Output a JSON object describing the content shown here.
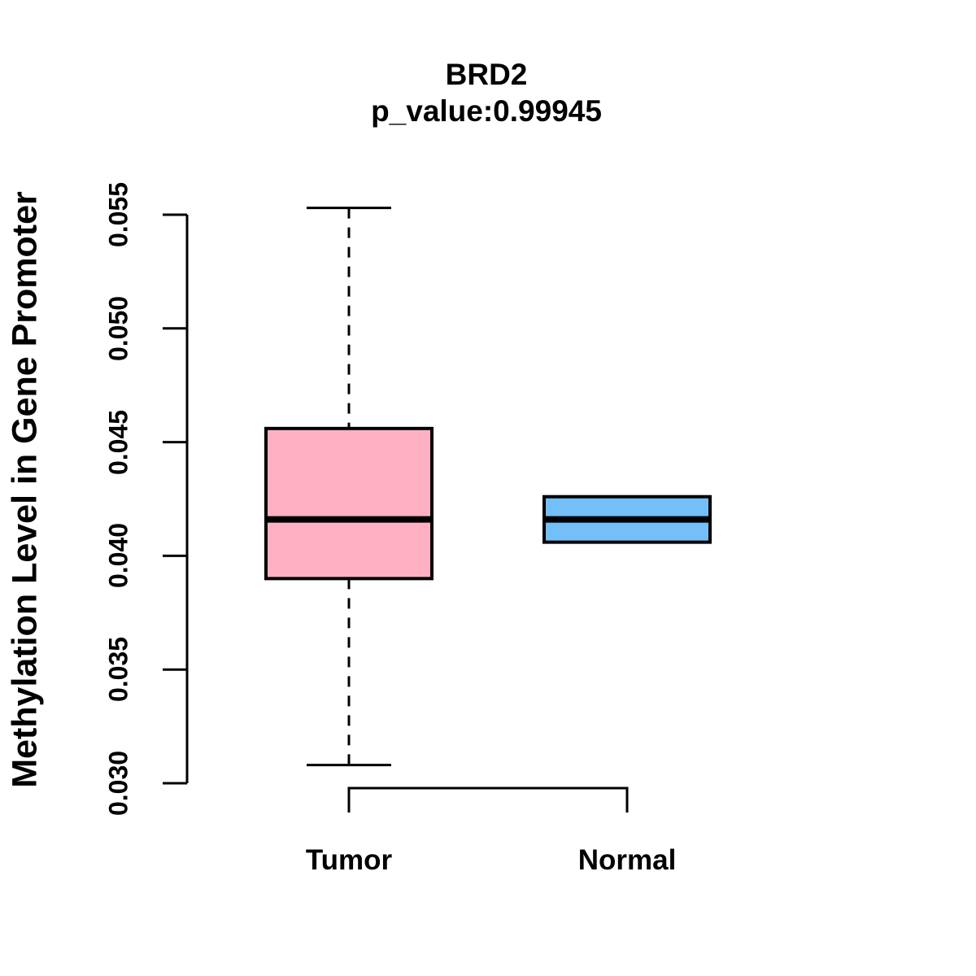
{
  "figure": {
    "background": "#ffffff",
    "stroke_color": "#000000"
  },
  "chart_data": {
    "type": "box",
    "title": "BRD2",
    "subtitle": "p_value:0.99945",
    "xlabel": "",
    "ylabel": "Methylation Level in Gene Promoter",
    "ylim": [
      0.03,
      0.055
    ],
    "yticks": [
      "0.030",
      "0.035",
      "0.040",
      "0.045",
      "0.050",
      "0.055"
    ],
    "grid": "off",
    "legend": "none",
    "categories": [
      "Tumor",
      "Normal"
    ],
    "series": [
      {
        "name": "Tumor",
        "min": 0.0308,
        "q1": 0.039,
        "median": 0.0416,
        "q3": 0.0456,
        "max": 0.0553,
        "fill": "#FFB1C3"
      },
      {
        "name": "Normal",
        "min": 0.0406,
        "q1": 0.0406,
        "median": 0.0416,
        "q3": 0.0426,
        "max": 0.0426,
        "fill": "#74BFF7"
      }
    ]
  }
}
